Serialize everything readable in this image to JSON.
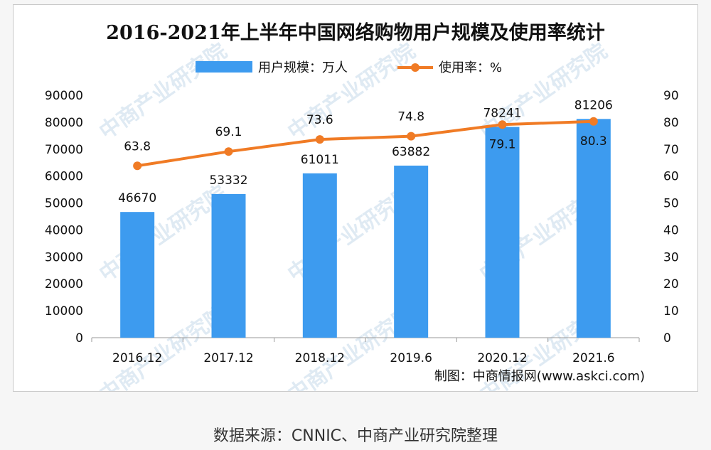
{
  "chart_data": {
    "type": "bar+line",
    "title": "2016-2021年上半年中国网络购物用户规模及使用率统计",
    "categories": [
      "2016.12",
      "2017.12",
      "2018.12",
      "2019.6",
      "2020.12",
      "2021.6"
    ],
    "series": [
      {
        "name": "用户规模：万人",
        "type": "bar",
        "axis": "left",
        "values": [
          46670,
          53332,
          61011,
          63882,
          78241,
          81206
        ],
        "color": "#3d9bef"
      },
      {
        "name": "使用率：%",
        "type": "line",
        "axis": "right",
        "values": [
          63.8,
          69.1,
          73.6,
          74.8,
          79.1,
          80.3
        ],
        "color": "#f07b25"
      }
    ],
    "y_left": {
      "min": 0,
      "max": 90000,
      "step": 10000
    },
    "y_right": {
      "min": 0,
      "max": 90,
      "step": 10
    },
    "legend_placement": "top-center",
    "grid": false
  },
  "credit": "制图：中商情报网(www.askci.com)",
  "watermark": "中商产业研究院",
  "source_note": "数据来源：CNNIC、中商产业研究院整理"
}
